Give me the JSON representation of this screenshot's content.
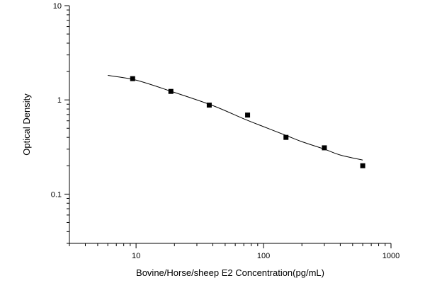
{
  "chart_data": {
    "type": "scatter",
    "xlabel": "Bovine/Horse/sheep E2 Concentration(pg/mL)",
    "ylabel": "Optical Density",
    "xscale": "log",
    "yscale": "log",
    "xlim": [
      3,
      1000
    ],
    "ylim": [
      0.03,
      10
    ],
    "xticks": [
      10,
      100,
      1000
    ],
    "xtick_labels": [
      "10",
      "100",
      "1000"
    ],
    "yticks": [
      0.1,
      1,
      10
    ],
    "ytick_labels": [
      "0.1",
      "1",
      "10"
    ],
    "grid": false,
    "legend": false,
    "series": [
      {
        "kind": "points",
        "marker": "square",
        "x": [
          9.4,
          18.75,
          37.5,
          75,
          150,
          300,
          600
        ],
        "y": [
          1.68,
          1.23,
          0.88,
          0.69,
          0.4,
          0.31,
          0.2
        ]
      },
      {
        "kind": "fit-curve",
        "x": [
          6,
          10,
          20,
          40,
          70,
          100,
          150,
          200,
          300,
          400,
          600
        ],
        "y": [
          1.82,
          1.62,
          1.2,
          0.87,
          0.63,
          0.52,
          0.42,
          0.36,
          0.3,
          0.26,
          0.23
        ]
      }
    ],
    "colors": {
      "axis": "#000000",
      "points": "#000000",
      "curve": "#000000",
      "background": "#ffffff"
    }
  }
}
